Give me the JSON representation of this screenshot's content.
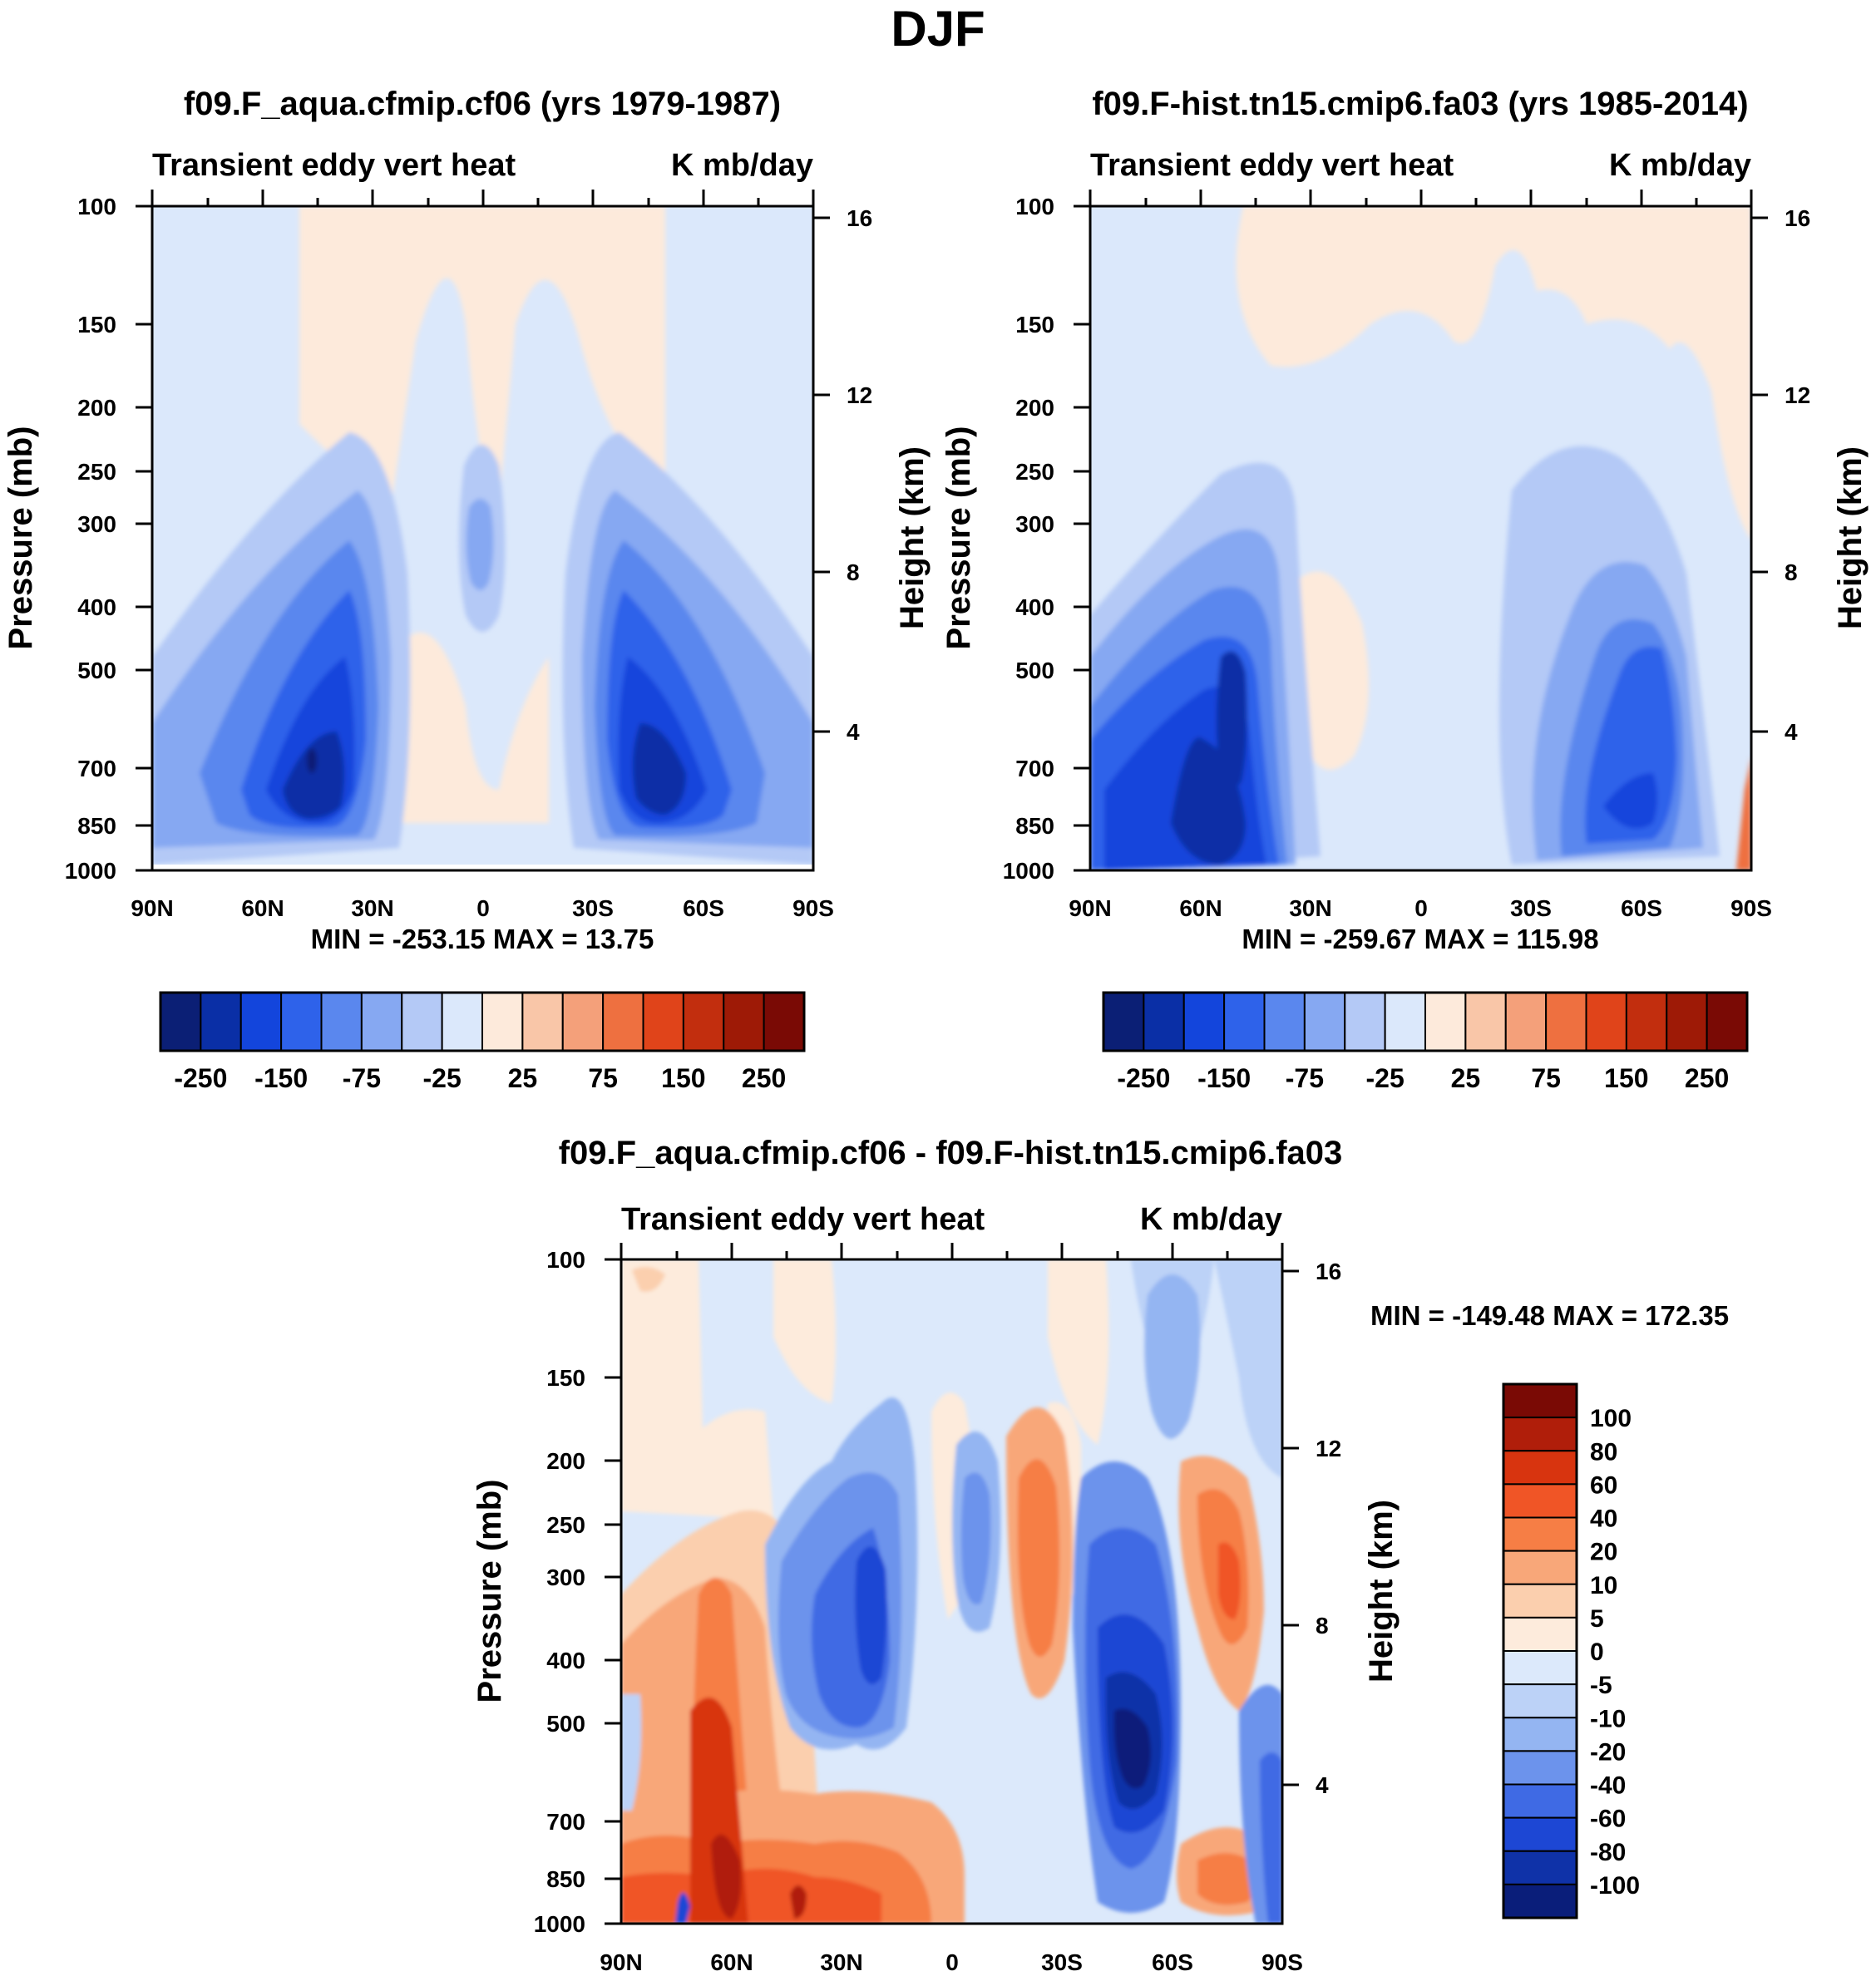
{
  "figure": {
    "title": "DJF"
  },
  "chart_data": [
    {
      "type": "contour",
      "title": "f09.F_aqua.cfmip.cf06 (yrs 1979-1987)",
      "left_string": "Transient eddy vert heat",
      "right_string": "K mb/day",
      "ylabel": "Pressure (mb)",
      "ylabel_right": "Height (km)",
      "x_ticks": [
        "90N",
        "60N",
        "30N",
        "0",
        "30S",
        "60S",
        "90S"
      ],
      "y_ticks": [
        "100",
        "150",
        "200",
        "250",
        "300",
        "400",
        "500",
        "700",
        "850",
        "1000"
      ],
      "right_ticks": [
        "16",
        "12",
        "8",
        "4"
      ],
      "stats": "MIN = -253.15   MAX =  13.75",
      "colorbar": {
        "orientation": "horizontal",
        "colors": [
          "#0b1f75",
          "#0a2fa6",
          "#1345dc",
          "#2e62ea",
          "#5a87ee",
          "#86a8f2",
          "#b4c9f6",
          "#dbe8fb",
          "#fdeadb",
          "#f9c6a8",
          "#f4a07a",
          "#ee7040",
          "#e0441a",
          "#c22e0e",
          "#9e1a06",
          "#7a0a05"
        ],
        "labels": [
          "-250",
          "-150",
          "-75",
          "-25",
          "25",
          "75",
          "150",
          "250"
        ]
      },
      "features": [
        {
          "lat": 45,
          "p": 650,
          "value": -253
        },
        {
          "lat": -45,
          "p": 600,
          "value": -225
        },
        {
          "lat": 0,
          "p": 270,
          "value": -30
        }
      ]
    },
    {
      "type": "contour",
      "title": "f09.F-hist.tn15.cmip6.fa03 (yrs 1985-2014)",
      "left_string": "Transient eddy vert heat",
      "right_string": "K mb/day",
      "ylabel": "Pressure (mb)",
      "ylabel_right": "Height (km)",
      "x_ticks": [
        "90N",
        "60N",
        "30N",
        "0",
        "30S",
        "60S",
        "90S"
      ],
      "y_ticks": [
        "100",
        "150",
        "200",
        "250",
        "300",
        "400",
        "500",
        "700",
        "850",
        "1000"
      ],
      "right_ticks": [
        "16",
        "12",
        "8",
        "4"
      ],
      "stats": "MIN = -259.67   MAX = 115.98",
      "colorbar": {
        "orientation": "horizontal",
        "colors": [
          "#0b1f75",
          "#0a2fa6",
          "#1345dc",
          "#2e62ea",
          "#5a87ee",
          "#86a8f2",
          "#b4c9f6",
          "#dbe8fb",
          "#fdeadb",
          "#f9c6a8",
          "#f4a07a",
          "#ee7040",
          "#e0441a",
          "#c22e0e",
          "#9e1a06",
          "#7a0a05"
        ],
        "labels": [
          "-250",
          "-150",
          "-75",
          "-25",
          "25",
          "75",
          "150",
          "250"
        ]
      },
      "features": [
        {
          "lat": 45,
          "p": 750,
          "value": -259
        },
        {
          "lat": -55,
          "p": 800,
          "value": -200
        },
        {
          "lat": 10,
          "p": 550,
          "value": 20
        }
      ]
    },
    {
      "type": "contour",
      "title": "f09.F_aqua.cfmip.cf06 - f09.F-hist.tn15.cmip6.fa03",
      "left_string": "Transient eddy vert heat",
      "right_string": "K mb/day",
      "ylabel": "Pressure (mb)",
      "ylabel_right": "Height (km)",
      "x_ticks": [
        "90N",
        "60N",
        "30N",
        "0",
        "30S",
        "60S",
        "90S"
      ],
      "y_ticks": [
        "100",
        "150",
        "200",
        "250",
        "300",
        "400",
        "500",
        "700",
        "850",
        "1000"
      ],
      "right_ticks": [
        "16",
        "12",
        "8",
        "4"
      ],
      "stats": "MIN = -149.48  MAX = 172.35",
      "colorbar": {
        "orientation": "vertical",
        "colors_top_to_bottom": [
          "#7a0a05",
          "#b01e0a",
          "#d8340f",
          "#f05526",
          "#f67e45",
          "#f8a779",
          "#fbcfae",
          "#fdebdc",
          "#dce9fb",
          "#bcd2f7",
          "#94b5f2",
          "#6c93ec",
          "#3f6ae4",
          "#1d47d4",
          "#0f32a8",
          "#0a1e7a"
        ],
        "labels": [
          "100",
          "80",
          "60",
          "40",
          "20",
          "10",
          "5",
          "0",
          "-5",
          "-10",
          "-20",
          "-40",
          "-60",
          "-80",
          "-100"
        ]
      }
    }
  ]
}
